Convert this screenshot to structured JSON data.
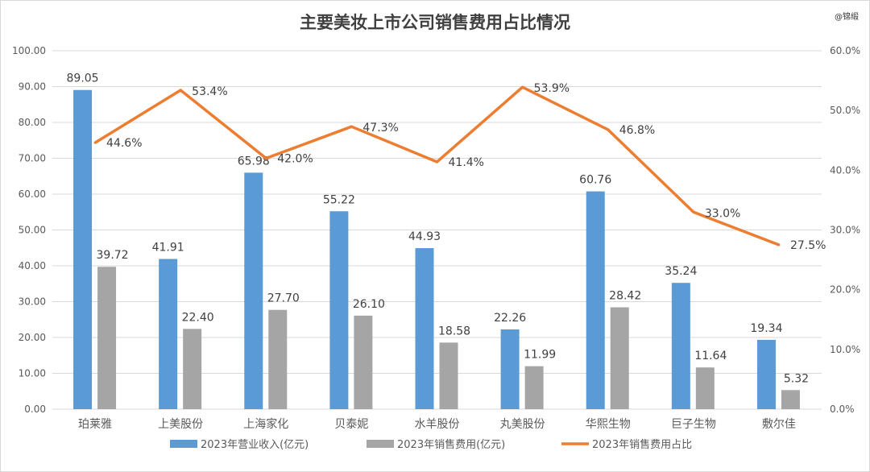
{
  "watermark": "@锦缎",
  "chart_data": {
    "type": "bar",
    "title": "主要美妆上市公司销售费用占比情况",
    "categories": [
      "珀莱雅",
      "上美股份",
      "上海家化",
      "贝泰妮",
      "水羊股份",
      "丸美股份",
      "华熙生物",
      "巨子生物",
      "敷尔佳"
    ],
    "series": [
      {
        "name": "2023年营业收入(亿元)",
        "type": "bar",
        "axis": "left",
        "color": "#5b9bd5",
        "values": [
          89.05,
          41.91,
          65.98,
          55.22,
          44.93,
          22.26,
          60.76,
          35.24,
          19.34
        ],
        "labels": [
          "89.05",
          "41.91",
          "65.98",
          "55.22",
          "44.93",
          "22.26",
          "60.76",
          "35.24",
          "19.34"
        ]
      },
      {
        "name": "2023年销售费用(亿元)",
        "type": "bar",
        "axis": "left",
        "color": "#a5a5a5",
        "values": [
          39.72,
          22.4,
          27.7,
          26.1,
          18.58,
          11.99,
          28.42,
          11.64,
          5.32
        ],
        "labels": [
          "39.72",
          "22.40",
          "27.70",
          "26.10",
          "18.58",
          "11.99",
          "28.42",
          "11.64",
          "5.32"
        ]
      },
      {
        "name": "2023年销售费用占比",
        "type": "line",
        "axis": "right",
        "color": "#ed7d31",
        "values": [
          44.6,
          53.4,
          42.0,
          47.3,
          41.4,
          53.9,
          46.8,
          33.0,
          27.5
        ],
        "labels": [
          "44.6%",
          "53.4%",
          "42.0%",
          "47.3%",
          "41.4%",
          "53.9%",
          "46.8%",
          "33.0%",
          "27.5%"
        ]
      }
    ],
    "ylim": [
      0,
      100
    ],
    "y_ticks": [
      "0.00",
      "10.00",
      "20.00",
      "30.00",
      "40.00",
      "50.00",
      "60.00",
      "70.00",
      "80.00",
      "90.00",
      "100.00"
    ],
    "y2lim": [
      0,
      60
    ],
    "y2_ticks": [
      "0.0%",
      "10.0%",
      "20.0%",
      "30.0%",
      "40.0%",
      "50.0%",
      "60.0%"
    ],
    "grid": true,
    "legend": "bottom"
  }
}
